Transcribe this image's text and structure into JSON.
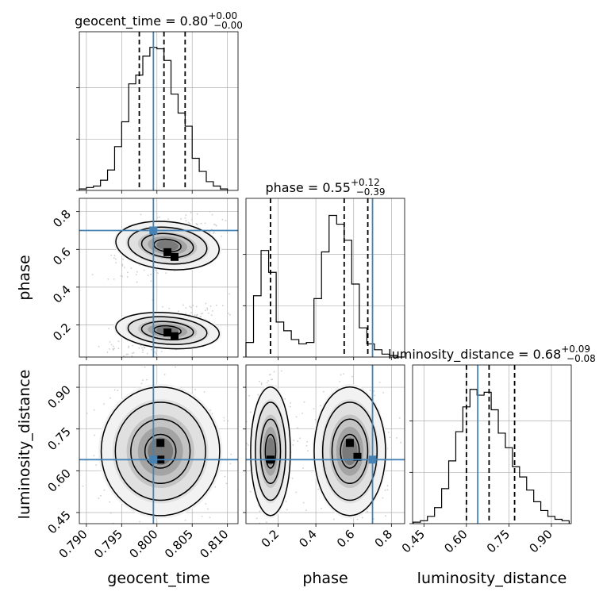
{
  "chart_data": [
    {
      "type": "histogram",
      "panel": "geocent_time_marginal",
      "title": {
        "base": "geocent_time = 0.80",
        "sup": "+0.00",
        "sub": "−0.00"
      },
      "xlim": [
        0.789,
        0.8115
      ],
      "bins_x": [
        0.7895,
        0.7905,
        0.7915,
        0.7925,
        0.7935,
        0.7945,
        0.7955,
        0.7965,
        0.7975,
        0.7985,
        0.7995,
        0.8005,
        0.8015,
        0.8025,
        0.8035,
        0.8045,
        0.8055,
        0.8065,
        0.8075,
        0.8085,
        0.8095
      ],
      "counts": [
        0.01,
        0.02,
        0.03,
        0.07,
        0.14,
        0.3,
        0.47,
        0.73,
        0.79,
        0.92,
        0.98,
        0.97,
        0.89,
        0.66,
        0.53,
        0.44,
        0.22,
        0.13,
        0.06,
        0.03,
        0.01
      ],
      "quantiles": [
        0.7975,
        0.801,
        0.804
      ],
      "truth": 0.7995
    },
    {
      "type": "histogram",
      "panel": "phase_marginal",
      "title": {
        "base": "phase = 0.55",
        "sup": "+0.12",
        "sub": "−0.39"
      },
      "xlim": [
        0.03,
        0.87
      ],
      "bins_x": [
        0.05,
        0.09,
        0.13,
        0.17,
        0.21,
        0.25,
        0.29,
        0.33,
        0.37,
        0.41,
        0.45,
        0.49,
        0.53,
        0.57,
        0.61,
        0.65,
        0.69,
        0.73,
        0.77,
        0.81,
        0.85
      ],
      "counts": [
        0.1,
        0.42,
        0.73,
        0.58,
        0.24,
        0.18,
        0.12,
        0.09,
        0.1,
        0.4,
        0.72,
        0.97,
        0.91,
        0.8,
        0.5,
        0.2,
        0.09,
        0.05,
        0.02,
        0.01,
        0.0
      ],
      "quantiles": [
        0.16,
        0.55,
        0.675
      ],
      "truth": 0.7
    },
    {
      "type": "histogram",
      "panel": "luminosity_distance_marginal",
      "title": {
        "base": "luminosity_distance = 0.68",
        "sup": "+0.09",
        "sub": "−0.08"
      },
      "xlim": [
        0.41,
        0.97
      ],
      "bins_x": [
        0.425,
        0.45,
        0.475,
        0.5,
        0.525,
        0.55,
        0.575,
        0.6,
        0.625,
        0.65,
        0.675,
        0.7,
        0.725,
        0.75,
        0.775,
        0.8,
        0.825,
        0.85,
        0.875,
        0.9,
        0.925,
        0.95
      ],
      "counts": [
        0.01,
        0.02,
        0.05,
        0.11,
        0.24,
        0.43,
        0.63,
        0.8,
        0.92,
        0.88,
        0.9,
        0.78,
        0.62,
        0.52,
        0.39,
        0.32,
        0.23,
        0.15,
        0.09,
        0.05,
        0.03,
        0.02
      ],
      "quantiles": [
        0.6,
        0.68,
        0.77
      ],
      "truth": 0.64
    },
    {
      "type": "scatter",
      "panel": "phase_vs_geocent_time",
      "xlim": [
        0.789,
        0.8115
      ],
      "ylim": [
        0.03,
        0.87
      ],
      "truth": [
        0.7995,
        0.7
      ],
      "clusters": [
        {
          "center": [
            0.8015,
            0.62
          ],
          "spread": [
            0.0035,
            0.06
          ],
          "peaks": [
            [
              0.8015,
              0.585
            ],
            [
              0.8025,
              0.56
            ]
          ]
        },
        {
          "center": [
            0.8015,
            0.17
          ],
          "spread": [
            0.0035,
            0.045
          ],
          "peaks": [
            [
              0.8015,
              0.16
            ],
            [
              0.8025,
              0.14
            ]
          ]
        }
      ]
    },
    {
      "type": "scatter",
      "panel": "luminosity_distance_vs_geocent_time",
      "xlim": [
        0.789,
        0.8115
      ],
      "ylim": [
        0.41,
        0.98
      ],
      "truth": [
        0.7995,
        0.64
      ],
      "clusters": [
        {
          "center": [
            0.8005,
            0.67
          ],
          "spread": [
            0.004,
            0.11
          ],
          "peaks": [
            [
              0.8005,
              0.7
            ],
            [
              0.8005,
              0.64
            ]
          ]
        }
      ]
    },
    {
      "type": "scatter",
      "panel": "luminosity_distance_vs_phase",
      "xlim": [
        0.03,
        0.87
      ],
      "ylim": [
        0.41,
        0.98
      ],
      "truth": [
        0.7,
        0.64
      ],
      "clusters": [
        {
          "center": [
            0.16,
            0.67
          ],
          "spread": [
            0.05,
            0.11
          ],
          "peaks": [
            [
              0.16,
              0.64
            ]
          ]
        },
        {
          "center": [
            0.58,
            0.67
          ],
          "spread": [
            0.09,
            0.11
          ],
          "peaks": [
            [
              0.58,
              0.7
            ],
            [
              0.62,
              0.65
            ]
          ]
        }
      ]
    }
  ],
  "axes": {
    "geocent_time": {
      "label": "geocent_time",
      "ticks": [
        "0.790",
        "0.795",
        "0.800",
        "0.805",
        "0.810"
      ],
      "tick_values": [
        0.79,
        0.795,
        0.8,
        0.805,
        0.81
      ]
    },
    "phase": {
      "label": "phase",
      "ticks": [
        "0.2",
        "0.4",
        "0.6",
        "0.8"
      ],
      "tick_values": [
        0.2,
        0.4,
        0.6,
        0.8
      ]
    },
    "luminosity_distance": {
      "label": "luminosity_distance",
      "ticks": [
        "0.45",
        "0.60",
        "0.75",
        "0.90"
      ],
      "tick_values": [
        0.45,
        0.6,
        0.75,
        0.9
      ]
    }
  },
  "colors": {
    "truth": "#4682b4",
    "hist": "#000000",
    "grid": "#b0b0b0",
    "scatter_point": "#bdbdbd"
  }
}
